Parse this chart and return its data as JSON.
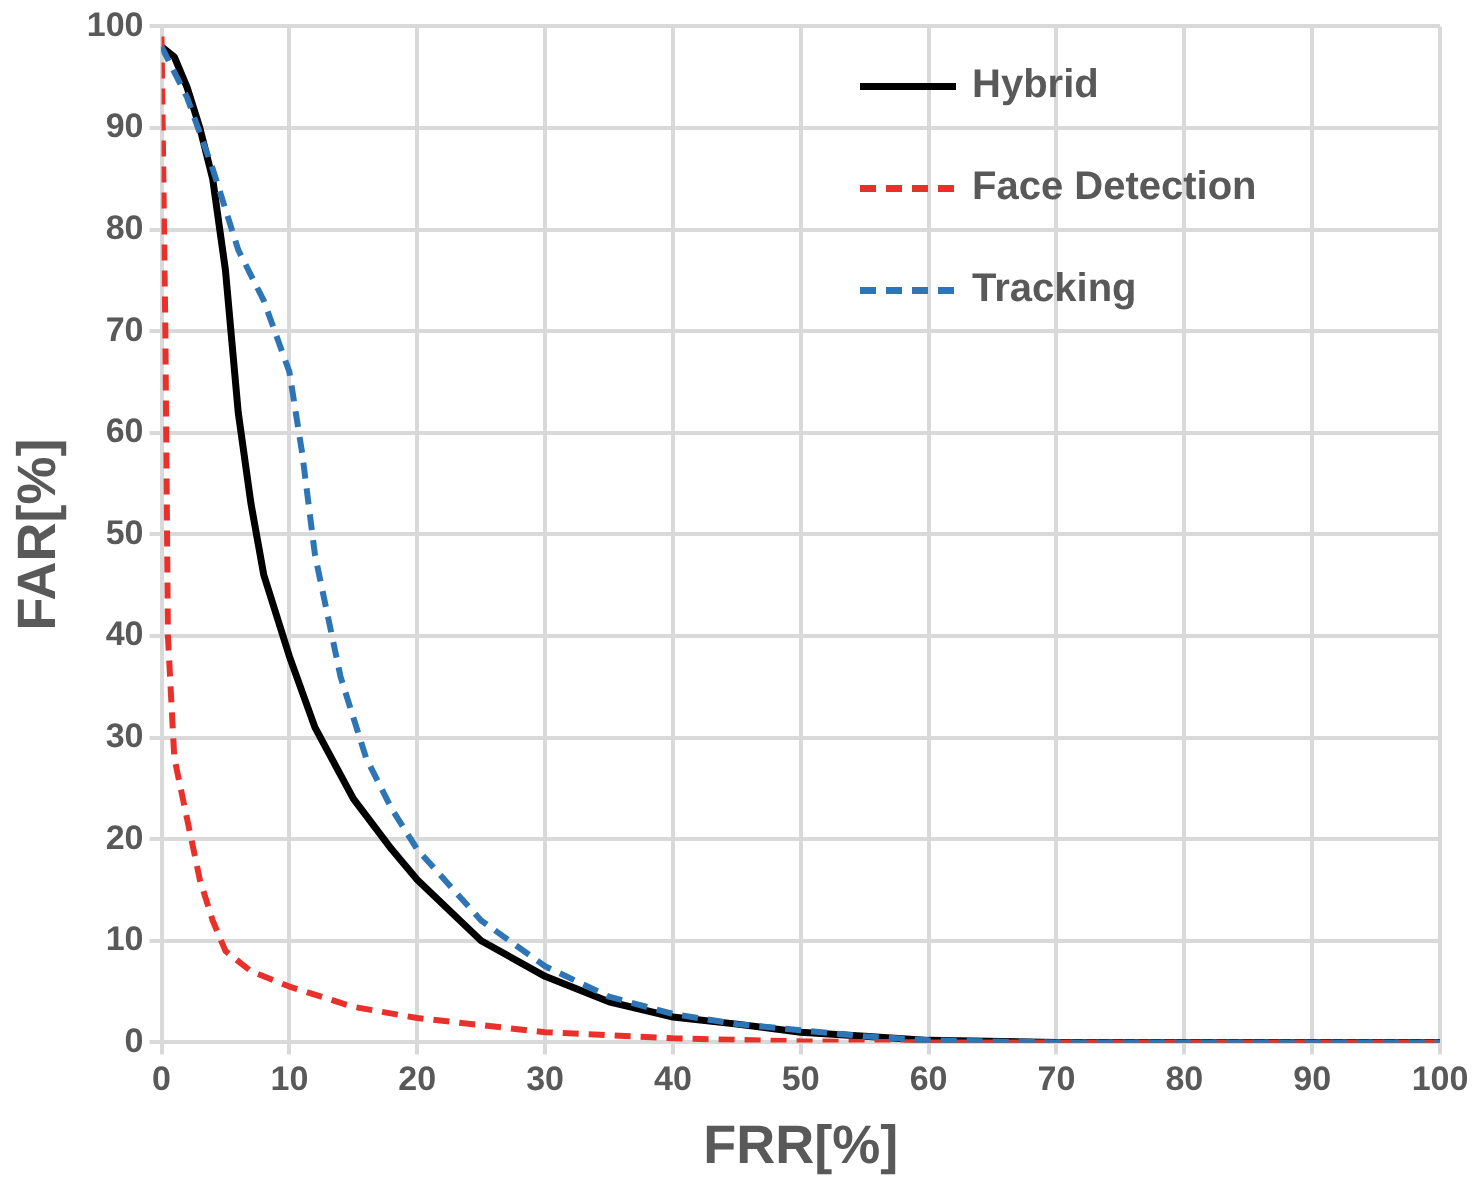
{
  "chart_data": {
    "type": "line",
    "xlabel": "FRR[%]",
    "ylabel": "FAR[%]",
    "xlim": [
      0,
      100
    ],
    "xticks": [
      0,
      10,
      20,
      30,
      40,
      50,
      60,
      70,
      80,
      90,
      100
    ],
    "ylim": [
      0,
      100
    ],
    "yticks": [
      0,
      10,
      20,
      30,
      40,
      50,
      60,
      70,
      80,
      90,
      100
    ],
    "grid": true,
    "legend": "top right",
    "marker": "none",
    "series": [
      {
        "name": "Hybrid",
        "color": "#000000",
        "line_style": "solid",
        "x": [
          0,
          1,
          2,
          3,
          4,
          5,
          6,
          7,
          8,
          10,
          12,
          15,
          18,
          20,
          25,
          30,
          35,
          40,
          45,
          50,
          55,
          60,
          70,
          100
        ],
        "values": [
          98,
          97,
          94,
          90,
          85,
          76,
          62,
          53,
          46,
          38,
          31,
          24,
          19,
          16,
          10,
          6.5,
          4,
          2.5,
          1.8,
          1,
          0.6,
          0.2,
          0,
          0
        ]
      },
      {
        "name": "Face Detection",
        "color": "#e8312a",
        "line_style": "dashed",
        "x": [
          0,
          0.3,
          0.5,
          1,
          2,
          3,
          4,
          5,
          7,
          10,
          15,
          20,
          30,
          40,
          50,
          60,
          100
        ],
        "values": [
          99,
          70,
          40,
          28,
          22,
          16,
          12,
          9,
          7,
          5.5,
          3.5,
          2.4,
          1,
          0.4,
          0.1,
          0,
          0
        ]
      },
      {
        "name": "Tracking",
        "color": "#2e75b6",
        "line_style": "dashed",
        "x": [
          0,
          2,
          4,
          5,
          6,
          8,
          10,
          11,
          12,
          14,
          16,
          18,
          20,
          25,
          30,
          35,
          40,
          45,
          50,
          55,
          60,
          70,
          100
        ],
        "values": [
          98,
          93,
          86,
          82,
          78,
          73,
          66,
          58,
          48,
          36,
          28,
          23,
          19,
          12,
          7.5,
          4.5,
          2.8,
          1.8,
          1.2,
          0.6,
          0.2,
          0,
          0
        ]
      }
    ]
  }
}
